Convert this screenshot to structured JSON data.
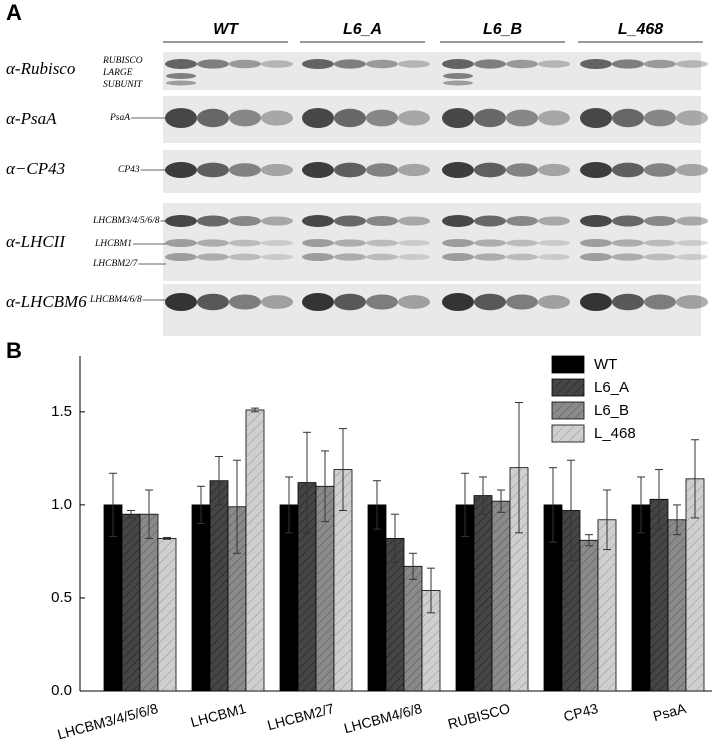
{
  "panel_a": {
    "label": "A",
    "groups": [
      "WT",
      "L6_A",
      "L6_B",
      "L_468"
    ],
    "rows": [
      "α-Rubisco",
      "α-PsaA",
      "α−CP43",
      "α-LHCII",
      "α-LHCBM6"
    ],
    "rubisco_label": [
      "RUBISCO",
      "LARGE",
      "SUBUNIT"
    ],
    "band_labels": [
      "PsaA",
      "CP43",
      "LHCBM3/4/5/6/8",
      "LHCBM1",
      "LHCBM2/7",
      "LHCBM4/6/8"
    ]
  },
  "panel_b": {
    "label": "B"
  },
  "chart_data": {
    "type": "bar",
    "categories": [
      "LHCBM3/4/5/6/8",
      "LHCBM1",
      "LHCBM2/7",
      "LHCBM4/6/8",
      "RUBISCO",
      "CP43",
      "PsaA"
    ],
    "series": [
      {
        "name": "WT",
        "color": "#000000",
        "values": [
          1.0,
          1.0,
          1.0,
          1.0,
          1.0,
          1.0,
          1.0
        ],
        "errors": [
          0.17,
          0.1,
          0.15,
          0.13,
          0.17,
          0.2,
          0.15
        ]
      },
      {
        "name": "L6_A",
        "color": "#454545",
        "values": [
          0.95,
          1.13,
          1.12,
          0.82,
          1.05,
          0.97,
          1.03
        ],
        "errors": [
          0.02,
          0.13,
          0.27,
          0.13,
          0.1,
          0.27,
          0.16
        ]
      },
      {
        "name": "L6_B",
        "color": "#8a8a8a",
        "values": [
          0.95,
          0.99,
          1.1,
          0.67,
          1.02,
          0.81,
          0.92
        ],
        "errors": [
          0.13,
          0.25,
          0.19,
          0.07,
          0.06,
          0.03,
          0.08
        ]
      },
      {
        "name": "L_468",
        "color": "#cfcfcf",
        "values": [
          0.82,
          1.51,
          1.19,
          0.54,
          1.2,
          0.92,
          1.14
        ],
        "errors": [
          0.005,
          0.01,
          0.22,
          0.12,
          0.35,
          0.16,
          0.21
        ]
      }
    ],
    "ylim": [
      0,
      1.8
    ],
    "yticks": [
      {
        "value": 0,
        "label": "0.0"
      },
      {
        "value": 0.5,
        "label": "0.5"
      },
      {
        "value": 1,
        "label": "1.0"
      },
      {
        "value": 1.5,
        "label": "1.5"
      }
    ],
    "legend": "upper right"
  }
}
